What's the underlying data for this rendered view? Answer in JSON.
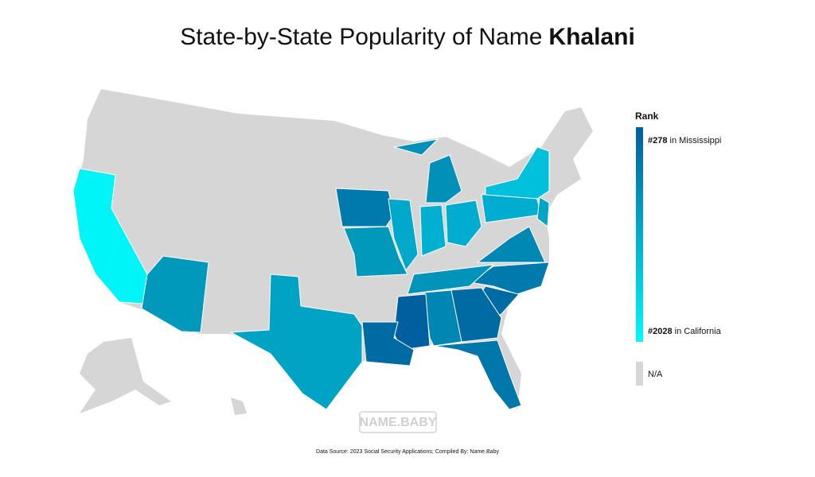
{
  "title": {
    "text": "State-by-State Popularity of Name",
    "name": "Khalani"
  },
  "legend": {
    "title": "Rank",
    "high": {
      "rank": "#278",
      "place": "in Mississippi"
    },
    "low": {
      "rank": "#2028",
      "place": "in California"
    },
    "na": "N/A"
  },
  "watermark": "NAME.BABY",
  "source": "Data Source: 2023 Social Security Applications; Compiled By: Name.Baby"
}
